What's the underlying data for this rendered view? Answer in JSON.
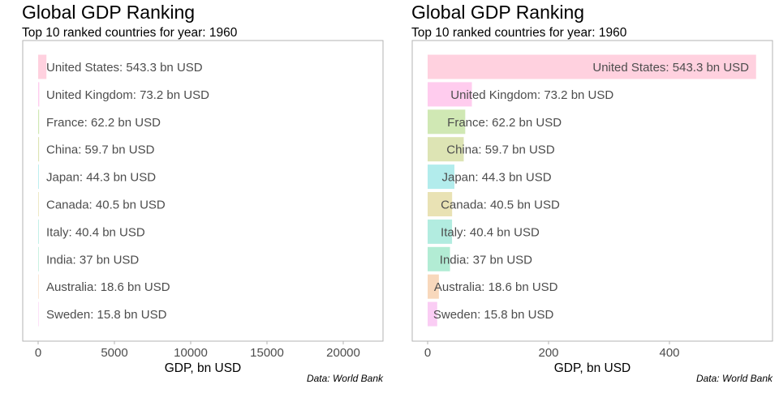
{
  "chart_data": [
    {
      "type": "bar",
      "orientation": "horizontal",
      "title": "Global GDP Ranking",
      "subtitle": "Top 10 ranked countries for year: 1960",
      "xlabel": "GDP, bn USD",
      "caption": "Data: World Bank",
      "xlim": [
        0,
        22500
      ],
      "xticks": [
        "0",
        "5000",
        "10000",
        "15000",
        "20000"
      ],
      "xtick_values": [
        0,
        5000,
        10000,
        15000,
        20000
      ],
      "grid": false,
      "categories": [
        "United States",
        "United Kingdom",
        "France",
        "China",
        "Japan",
        "Canada",
        "Italy",
        "India",
        "Australia",
        "Sweden"
      ],
      "values": [
        543.3,
        73.2,
        62.2,
        59.7,
        44.3,
        40.5,
        40.4,
        37,
        18.6,
        15.8
      ],
      "labels": [
        "United States: 543.3 bn USD",
        "United Kingdom: 73.2 bn USD",
        "France: 62.2 bn USD",
        "China: 59.7 bn USD",
        "Japan: 44.3 bn USD",
        "Canada: 40.5 bn USD",
        "Italy: 40.4 bn USD",
        "India: 37 bn USD",
        "Australia: 18.6 bn USD",
        "Sweden: 15.8 bn USD"
      ],
      "colors": [
        "#ffd1df",
        "#ffccee",
        "#d0e8b4",
        "#dde4b4",
        "#b2ecec",
        "#e9e2b4",
        "#b2ece0",
        "#b2ecd4",
        "#f8d8bc",
        "#facdf4"
      ]
    },
    {
      "type": "bar",
      "orientation": "horizontal",
      "title": "Global GDP Ranking",
      "subtitle": "Top 10 ranked countries for year: 1960",
      "xlabel": "GDP, bn USD",
      "caption": "Data: World Bank",
      "xlim": [
        0,
        570
      ],
      "xticks": [
        "0",
        "200",
        "400"
      ],
      "xtick_values": [
        0,
        200,
        400
      ],
      "grid": false,
      "categories": [
        "United States",
        "United Kingdom",
        "France",
        "China",
        "Japan",
        "Canada",
        "Italy",
        "India",
        "Australia",
        "Sweden"
      ],
      "values": [
        543.3,
        73.2,
        62.2,
        59.7,
        44.3,
        40.5,
        40.4,
        37,
        18.6,
        15.8
      ],
      "labels": [
        "United States: 543.3 bn USD",
        "United Kingdom: 73.2 bn USD",
        "France: 62.2 bn USD",
        "China: 59.7 bn USD",
        "Japan: 44.3 bn USD",
        "Canada: 40.5 bn USD",
        "Italy: 40.4 bn USD",
        "India: 37 bn USD",
        "Australia: 18.6 bn USD",
        "Sweden: 15.8 bn USD"
      ],
      "colors": [
        "#ffd1df",
        "#ffccee",
        "#d0e8b4",
        "#dde4b4",
        "#b2ecec",
        "#e9e2b4",
        "#b2ece0",
        "#b2ecd4",
        "#f8d8bc",
        "#facdf4"
      ]
    }
  ]
}
